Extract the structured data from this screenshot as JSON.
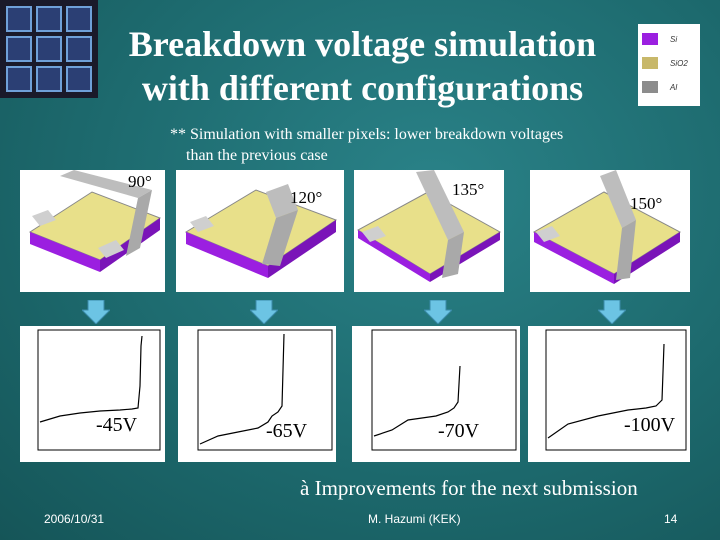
{
  "slide": {
    "title_line1": "Breakdown voltage simulation",
    "title_line2": "with different configurations",
    "note_line1": "** Simulation with smaller pixels: lower breakdown voltages",
    "note_line2": "than the previous case",
    "legend": [
      {
        "label": "Si",
        "color": "#9b1fe0"
      },
      {
        "label": "SiO2",
        "color": "#c8b86a"
      },
      {
        "label": "Al",
        "color": "#8c8c8c"
      }
    ],
    "configs": [
      {
        "angle": "90°",
        "voltage": "-45V"
      },
      {
        "angle": "120°",
        "voltage": "-65V"
      },
      {
        "angle": "135°",
        "voltage": "-70V"
      },
      {
        "angle": "150°",
        "voltage": "-100V"
      }
    ],
    "conclusion": "à Improvements for the next submission",
    "footer": {
      "date": "2006/10/31",
      "author": "M. Hazumi (KEK)",
      "page": "14"
    },
    "colors": {
      "background": "#1e6f73",
      "arrow": "#6cc4e4",
      "silicon": "#9b1fe0",
      "oxide": "#e8e08a",
      "aluminium": "#a9a9a9"
    }
  }
}
